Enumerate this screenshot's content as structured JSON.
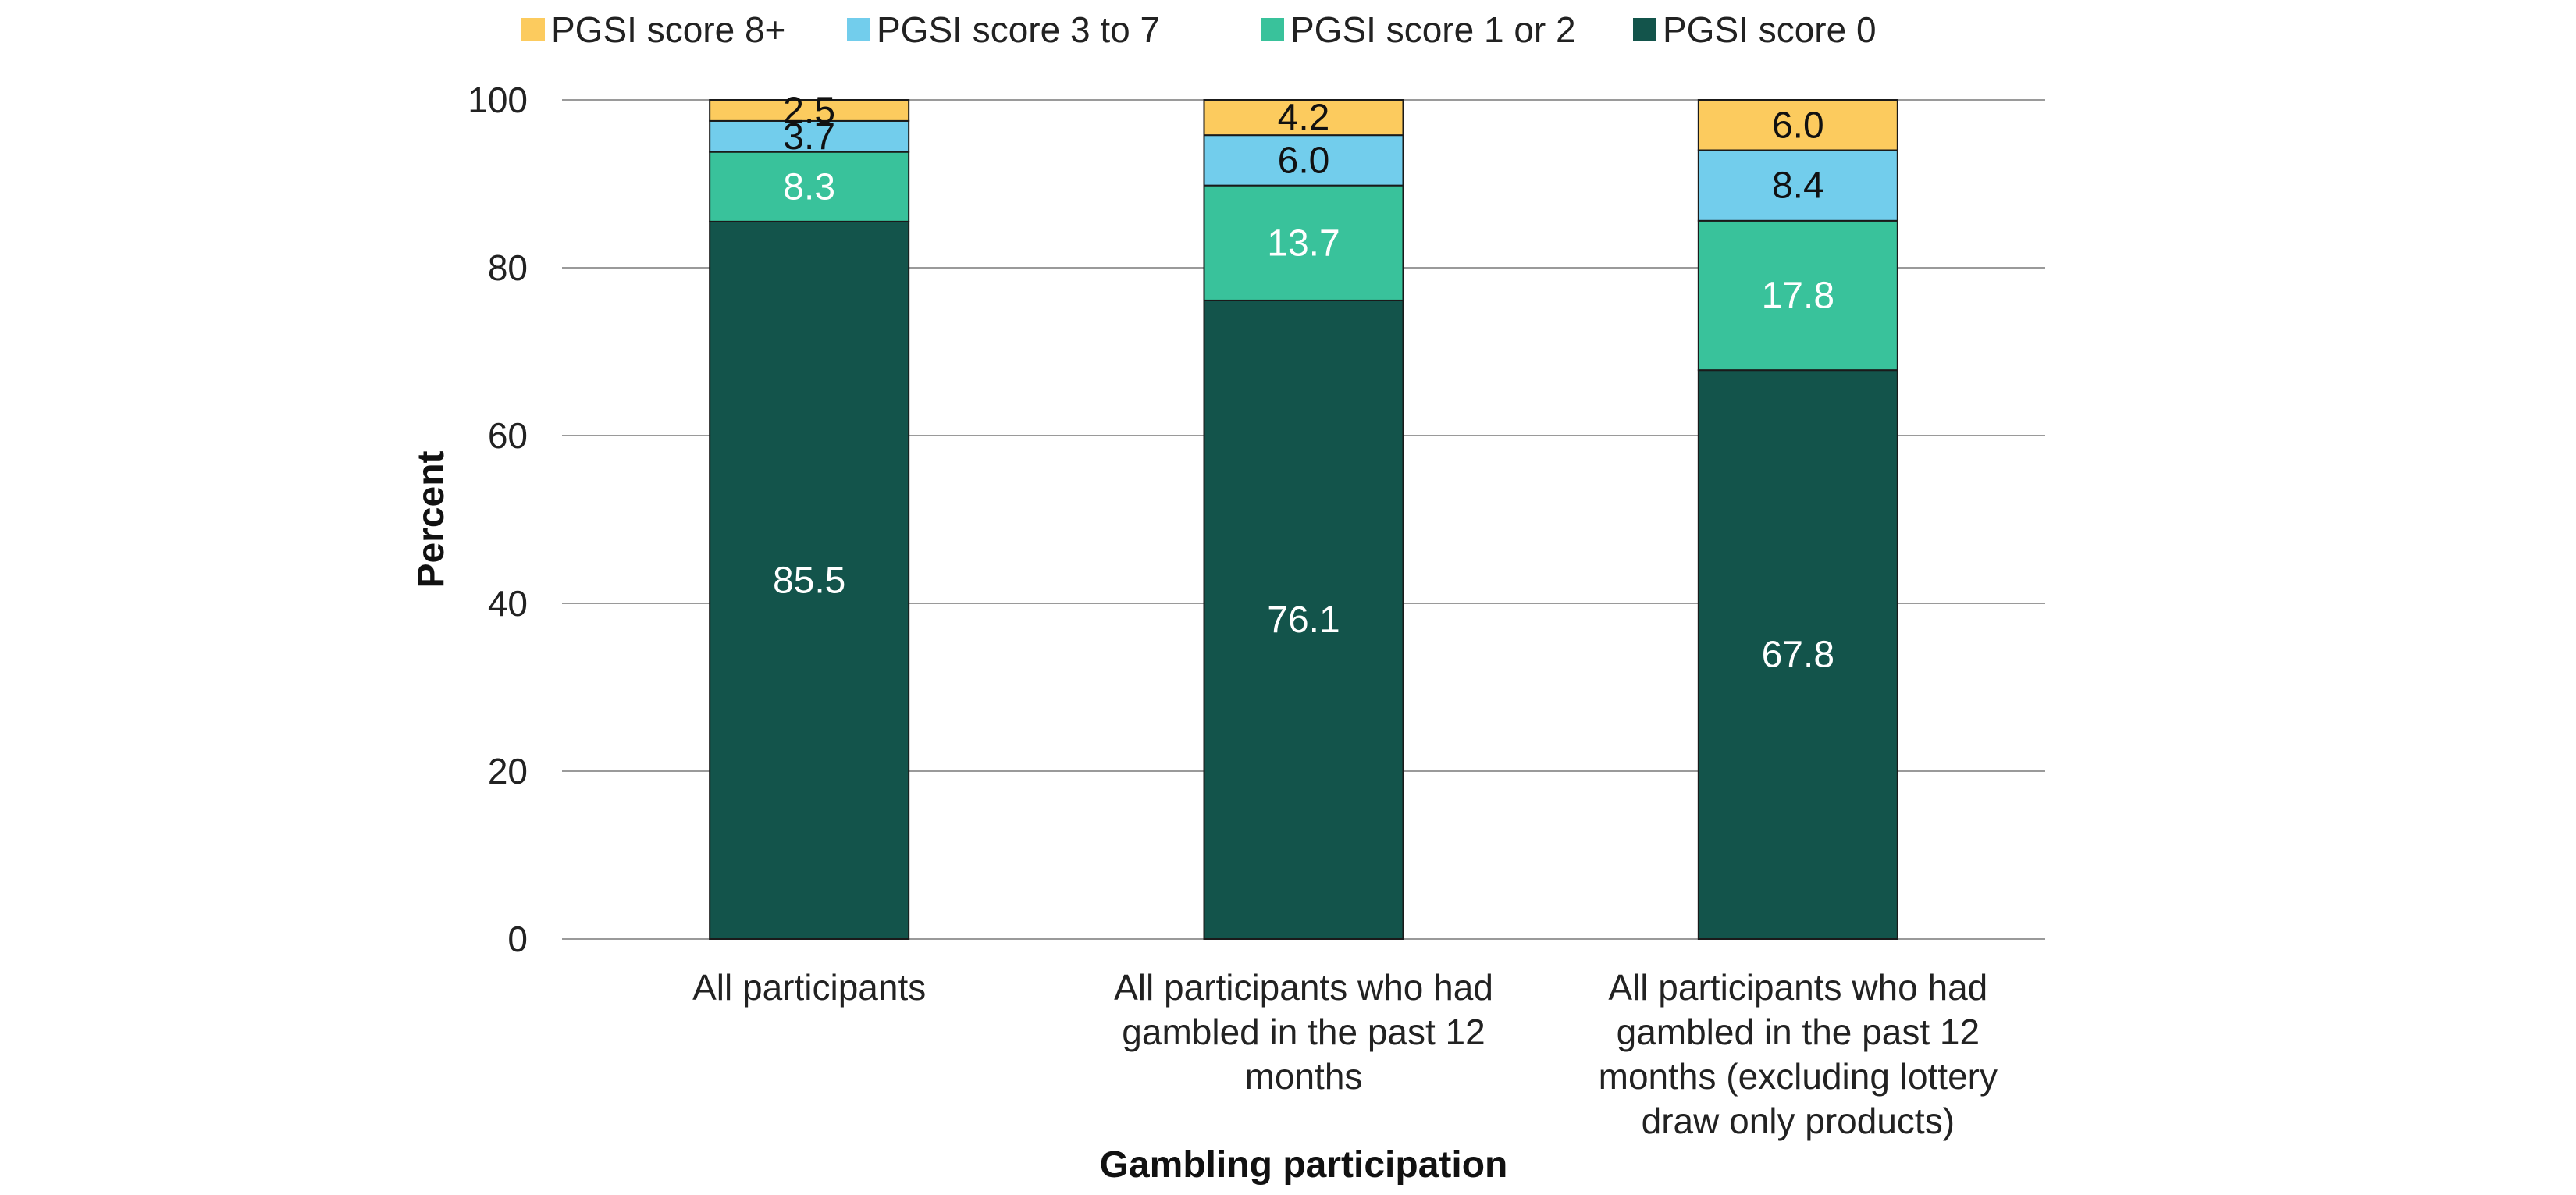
{
  "chart_data": {
    "type": "bar",
    "stacked": true,
    "categories": [
      [
        "All participants"
      ],
      [
        "All participants who had",
        "gambled in the past 12",
        "months"
      ],
      [
        "All participants who had",
        "gambled in the past 12",
        "months (excluding lottery",
        "draw only products)"
      ]
    ],
    "series": [
      {
        "name": "PGSI score 0",
        "values": [
          85.5,
          76.1,
          67.8
        ],
        "labels": [
          "85.5",
          "76.1",
          "67.8"
        ],
        "color": "#13544b",
        "label_color": "#ffffff"
      },
      {
        "name": "PGSI score 1 or 2",
        "values": [
          8.3,
          13.7,
          17.8
        ],
        "labels": [
          "8.3",
          "13.7",
          "17.8"
        ],
        "color": "#39c29b",
        "label_color": "#ffffff"
      },
      {
        "name": "PGSI score 3 to 7",
        "values": [
          3.7,
          6.0,
          8.4
        ],
        "labels": [
          "3.7",
          "6.0",
          "8.4"
        ],
        "color": "#72cdec",
        "label_color": "#111111"
      },
      {
        "name": "PGSI score 8+",
        "values": [
          2.5,
          4.2,
          6.0
        ],
        "labels": [
          "2.5",
          "4.2",
          "6.0"
        ],
        "color": "#fccb5e",
        "label_color": "#111111"
      }
    ],
    "legend_order": [
      "PGSI score 8+",
      "PGSI score 3 to 7",
      "PGSI score 1 or 2",
      "PGSI score 0"
    ],
    "xlabel": "Gambling participation",
    "ylabel": "Percent",
    "ylim": [
      0,
      100
    ],
    "yticks": [
      "0",
      "20",
      "40",
      "60",
      "80",
      "100"
    ],
    "grid": true,
    "legend_position": "top"
  }
}
